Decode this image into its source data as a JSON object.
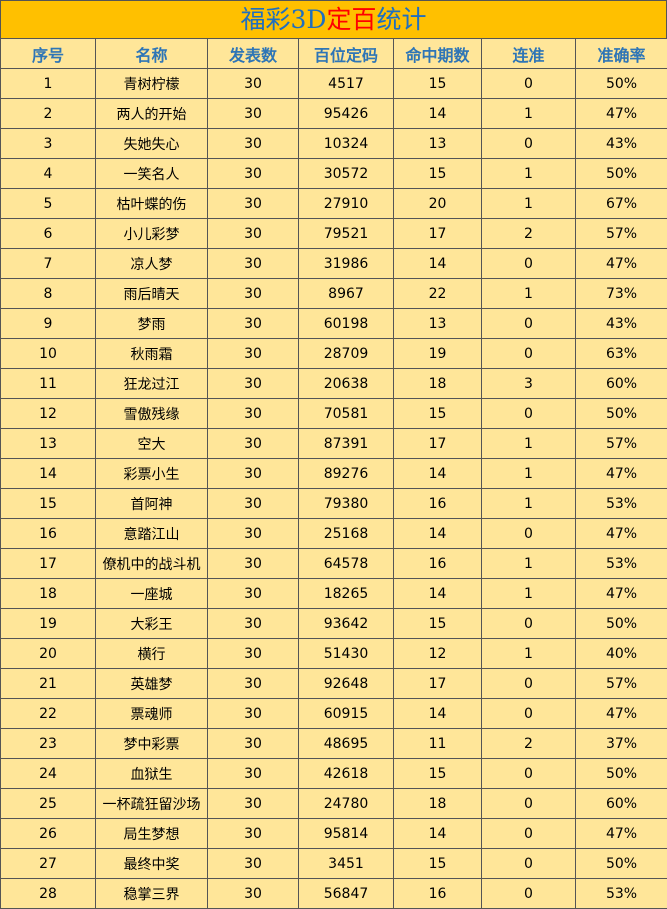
{
  "title": {
    "parts": [
      "福彩3D",
      "定百",
      "统计"
    ]
  },
  "table": {
    "header": [
      "序号",
      "名称",
      "发表数",
      "百位定码",
      "命中期数",
      "连准",
      "准确率"
    ],
    "rows": [
      [
        "1",
        "青树柠檬",
        "30",
        "4517",
        "15",
        "0",
        "50%"
      ],
      [
        "2",
        "两人的开始",
        "30",
        "95426",
        "14",
        "1",
        "47%"
      ],
      [
        "3",
        "失她失心",
        "30",
        "10324",
        "13",
        "0",
        "43%"
      ],
      [
        "4",
        "一笑名人",
        "30",
        "30572",
        "15",
        "1",
        "50%"
      ],
      [
        "5",
        "枯叶蝶的伤",
        "30",
        "27910",
        "20",
        "1",
        "67%"
      ],
      [
        "6",
        "小儿彩梦",
        "30",
        "79521",
        "17",
        "2",
        "57%"
      ],
      [
        "7",
        "凉人梦",
        "30",
        "31986",
        "14",
        "0",
        "47%"
      ],
      [
        "8",
        "雨后晴天",
        "30",
        "8967",
        "22",
        "1",
        "73%"
      ],
      [
        "9",
        "梦雨",
        "30",
        "60198",
        "13",
        "0",
        "43%"
      ],
      [
        "10",
        "秋雨霜",
        "30",
        "28709",
        "19",
        "0",
        "63%"
      ],
      [
        "11",
        "狂龙过江",
        "30",
        "20638",
        "18",
        "3",
        "60%"
      ],
      [
        "12",
        "雪傲残缘",
        "30",
        "70581",
        "15",
        "0",
        "50%"
      ],
      [
        "13",
        "空大",
        "30",
        "87391",
        "17",
        "1",
        "57%"
      ],
      [
        "14",
        "彩票小生",
        "30",
        "89276",
        "14",
        "1",
        "47%"
      ],
      [
        "15",
        "首阿神",
        "30",
        "79380",
        "16",
        "1",
        "53%"
      ],
      [
        "16",
        "意踏江山",
        "30",
        "25168",
        "14",
        "0",
        "47%"
      ],
      [
        "17",
        "僚机中的战斗机",
        "30",
        "64578",
        "16",
        "1",
        "53%"
      ],
      [
        "18",
        "一座城",
        "30",
        "18265",
        "14",
        "1",
        "47%"
      ],
      [
        "19",
        "大彩王",
        "30",
        "93642",
        "15",
        "0",
        "50%"
      ],
      [
        "20",
        "横行",
        "30",
        "51430",
        "12",
        "1",
        "40%"
      ],
      [
        "21",
        "英雄梦",
        "30",
        "92648",
        "17",
        "0",
        "57%"
      ],
      [
        "22",
        "票魂师",
        "30",
        "60915",
        "14",
        "0",
        "47%"
      ],
      [
        "23",
        "梦中彩票",
        "30",
        "48695",
        "11",
        "2",
        "37%"
      ],
      [
        "24",
        "血狱生",
        "30",
        "42618",
        "15",
        "0",
        "50%"
      ],
      [
        "25",
        "一杯疏狂留沙场",
        "30",
        "24780",
        "18",
        "0",
        "60%"
      ],
      [
        "26",
        "局生梦想",
        "30",
        "95814",
        "14",
        "0",
        "47%"
      ],
      [
        "27",
        "最终中奖",
        "30",
        "3451",
        "15",
        "0",
        "50%"
      ],
      [
        "28",
        "稳掌三界",
        "30",
        "56847",
        "16",
        "0",
        "53%"
      ]
    ]
  }
}
